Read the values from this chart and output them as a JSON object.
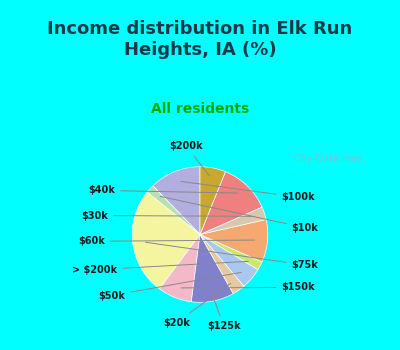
{
  "title": "Income distribution in Elk Run\nHeights, IA (%)",
  "subtitle": "All residents",
  "watermark": "City-Data.com",
  "labels": [
    "$100k",
    "$10k",
    "$75k",
    "$150k",
    "$125k",
    "$20k",
    "$50k",
    "> $200k",
    "$60k",
    "$30k",
    "$40k",
    "$200k"
  ],
  "sizes": [
    12,
    2,
    25,
    8,
    10,
    3,
    5,
    2,
    10,
    3,
    12,
    6
  ],
  "colors": [
    "#b3aee0",
    "#b8e0b0",
    "#f5f5a0",
    "#f5b8c8",
    "#8080cc",
    "#e8c8a0",
    "#a8c8f0",
    "#c8e870",
    "#f5a870",
    "#d8c8b0",
    "#f08080",
    "#c8a830"
  ],
  "background_top": "#00ffff",
  "background_chart": "#e8f5e8",
  "title_color": "#1a3a4a",
  "subtitle_color": "#00aa00",
  "label_color": "#1a1a1a",
  "startangle": 90
}
